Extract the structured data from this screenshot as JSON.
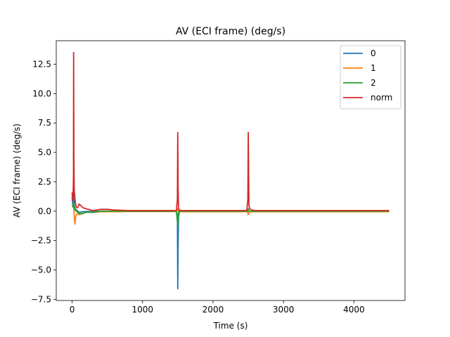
{
  "chart_data": {
    "type": "line",
    "title": "AV (ECI frame) (deg/s)",
    "xlabel": "Time (s)",
    "ylabel": "AV (ECI frame) (deg/s)",
    "xlim": [
      -225,
      4725
    ],
    "ylim": [
      -7.6,
      14.5
    ],
    "xticks": [
      0,
      1000,
      2000,
      3000,
      4000
    ],
    "xtick_labels": [
      "0",
      "1000",
      "2000",
      "3000",
      "4000"
    ],
    "yticks": [
      -7.5,
      -5.0,
      -2.5,
      0.0,
      2.5,
      5.0,
      7.5,
      10.0,
      12.5
    ],
    "ytick_labels": [
      "−7.5",
      "−5.0",
      "−2.5",
      "0.0",
      "2.5",
      "5.0",
      "7.5",
      "10.0",
      "12.5"
    ],
    "grid": false,
    "legend_position": "top-right",
    "series": [
      {
        "name": "0",
        "color": "#1f77b4",
        "x": [
          0,
          10,
          20,
          25,
          30,
          40,
          60,
          80,
          100,
          150,
          200,
          300,
          400,
          600,
          800,
          1000,
          1200,
          1400,
          1480,
          1495,
          1500,
          1505,
          1510,
          1520,
          1550,
          1600,
          1800,
          2000,
          2200,
          2400,
          2490,
          2500,
          2505,
          2510,
          2520,
          2600,
          2800,
          3000,
          3500,
          4000,
          4500
        ],
        "y": [
          1.2,
          0.6,
          0.3,
          1.5,
          0.5,
          0.2,
          0.1,
          0.0,
          -0.1,
          -0.05,
          -0.02,
          -0.02,
          0.0,
          0.0,
          0.0,
          0.0,
          0.0,
          0.0,
          0.0,
          -0.5,
          -6.6,
          -3.0,
          -0.5,
          -0.1,
          0.0,
          0.0,
          0.0,
          0.0,
          0.0,
          0.0,
          0.0,
          0.1,
          0.05,
          0.0,
          0.0,
          0.0,
          0.0,
          0.0,
          0.0,
          0.0,
          0.0
        ]
      },
      {
        "name": "1",
        "color": "#ff7f0e",
        "x": [
          0,
          10,
          20,
          25,
          30,
          40,
          50,
          60,
          80,
          100,
          150,
          200,
          300,
          400,
          600,
          800,
          1000,
          1200,
          1400,
          1480,
          1500,
          1510,
          1520,
          1600,
          1800,
          2000,
          2200,
          2400,
          2490,
          2500,
          2510,
          2520,
          2600,
          2800,
          3000,
          3500,
          4000,
          4500
        ],
        "y": [
          0.5,
          0.4,
          0.3,
          0.2,
          -0.5,
          -1.1,
          -0.5,
          -0.3,
          -0.2,
          -0.3,
          -0.2,
          -0.1,
          -0.1,
          -0.05,
          -0.05,
          -0.03,
          -0.03,
          -0.03,
          -0.03,
          -0.03,
          0.2,
          -0.1,
          -0.05,
          -0.05,
          -0.05,
          -0.05,
          -0.05,
          -0.05,
          -0.05,
          -0.3,
          -0.1,
          -0.05,
          -0.05,
          -0.05,
          -0.05,
          -0.05,
          -0.05,
          -0.05
        ]
      },
      {
        "name": "2",
        "color": "#2ca02c",
        "x": [
          0,
          10,
          20,
          25,
          30,
          40,
          60,
          80,
          100,
          150,
          200,
          300,
          400,
          600,
          800,
          1000,
          1200,
          1400,
          1480,
          1500,
          1505,
          1510,
          1520,
          1600,
          1800,
          2000,
          2200,
          2400,
          2490,
          2500,
          2510,
          2520,
          2600,
          2800,
          3000,
          3500,
          4000,
          4500
        ],
        "y": [
          0.5,
          0.4,
          0.3,
          0.7,
          0.2,
          0.1,
          0.0,
          -0.1,
          -0.2,
          -0.2,
          -0.1,
          -0.1,
          0.0,
          0.0,
          0.0,
          0.0,
          0.0,
          0.0,
          0.0,
          -1.2,
          -0.3,
          -0.1,
          0.0,
          0.0,
          0.0,
          0.0,
          0.0,
          0.0,
          0.0,
          0.2,
          0.0,
          0.0,
          0.0,
          0.0,
          0.0,
          0.0,
          0.0,
          0.0
        ]
      },
      {
        "name": "norm",
        "color": "#d62728",
        "x": [
          0,
          5,
          10,
          15,
          20,
          22,
          25,
          28,
          30,
          35,
          40,
          50,
          60,
          80,
          100,
          120,
          150,
          200,
          300,
          400,
          500,
          600,
          800,
          1000,
          1200,
          1400,
          1480,
          1495,
          1500,
          1505,
          1510,
          1520,
          1550,
          1600,
          1800,
          2000,
          2200,
          2400,
          2480,
          2495,
          2500,
          2505,
          2510,
          2520,
          2550,
          2600,
          2800,
          3000,
          3500,
          4000,
          4500
        ],
        "y": [
          1.6,
          1.3,
          0.9,
          1.4,
          3.0,
          13.5,
          5.0,
          2.5,
          1.8,
          1.5,
          1.0,
          0.6,
          0.3,
          0.3,
          0.6,
          0.5,
          0.3,
          0.2,
          0.05,
          0.15,
          0.15,
          0.1,
          0.05,
          0.05,
          0.05,
          0.05,
          0.05,
          1.0,
          6.7,
          2.0,
          0.3,
          0.1,
          0.05,
          0.05,
          0.05,
          0.05,
          0.05,
          0.05,
          0.05,
          1.0,
          6.7,
          3.0,
          0.5,
          0.2,
          0.1,
          0.05,
          0.05,
          0.05,
          0.05,
          0.05,
          0.05
        ]
      }
    ]
  }
}
